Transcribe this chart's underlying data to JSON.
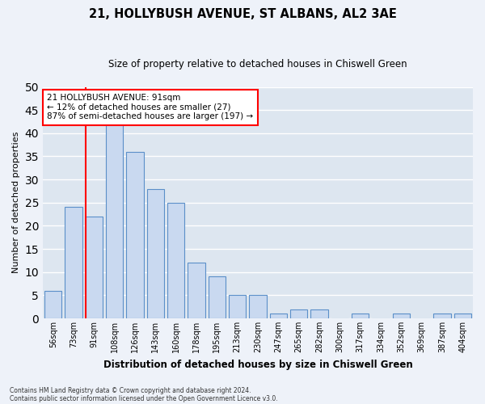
{
  "title1": "21, HOLLYBUSH AVENUE, ST ALBANS, AL2 3AE",
  "title2": "Size of property relative to detached houses in Chiswell Green",
  "xlabel": "Distribution of detached houses by size in Chiswell Green",
  "ylabel": "Number of detached properties",
  "categories": [
    "56sqm",
    "73sqm",
    "91sqm",
    "108sqm",
    "126sqm",
    "143sqm",
    "160sqm",
    "178sqm",
    "195sqm",
    "213sqm",
    "230sqm",
    "247sqm",
    "265sqm",
    "282sqm",
    "300sqm",
    "317sqm",
    "334sqm",
    "352sqm",
    "369sqm",
    "387sqm",
    "404sqm"
  ],
  "values": [
    6,
    24,
    22,
    42,
    36,
    28,
    25,
    12,
    9,
    5,
    5,
    1,
    2,
    2,
    0,
    1,
    0,
    1,
    0,
    1,
    1
  ],
  "bar_color": "#c9d9f0",
  "bar_edge_color": "#5b8fc9",
  "red_line_index": 2,
  "annotation_title": "21 HOLLYBUSH AVENUE: 91sqm",
  "annotation_line1": "← 12% of detached houses are smaller (27)",
  "annotation_line2": "87% of semi-detached houses are larger (197) →",
  "ylim": [
    0,
    50
  ],
  "yticks": [
    0,
    5,
    10,
    15,
    20,
    25,
    30,
    35,
    40,
    45,
    50
  ],
  "fig_bg_color": "#eef2f9",
  "ax_bg_color": "#dde6f0",
  "grid_color": "#ffffff",
  "footer1": "Contains HM Land Registry data © Crown copyright and database right 2024.",
  "footer2": "Contains public sector information licensed under the Open Government Licence v3.0."
}
